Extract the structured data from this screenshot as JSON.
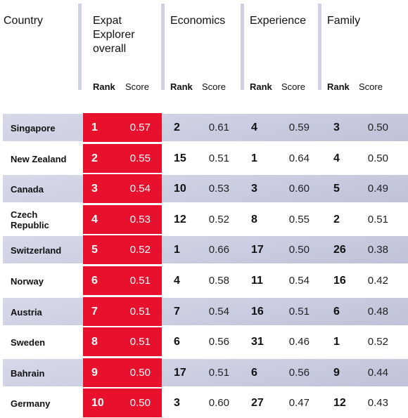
{
  "headers": {
    "country": "Country",
    "overall_lines": [
      "Expat",
      "Explorer",
      "overall"
    ],
    "economics": "Economics",
    "experience": "Experience",
    "family": "Family",
    "rank": "Rank",
    "score": "Score"
  },
  "rows": [
    {
      "country": [
        "Singapore"
      ],
      "overall_rank": "1",
      "overall_score": "0.57",
      "econ_rank": "2",
      "econ_score": "0.61",
      "exp_rank": "4",
      "exp_score": "0.59",
      "fam_rank": "3",
      "fam_score": "0.50"
    },
    {
      "country": [
        "New Zealand"
      ],
      "overall_rank": "2",
      "overall_score": "0.55",
      "econ_rank": "15",
      "econ_score": "0.51",
      "exp_rank": "1",
      "exp_score": "0.64",
      "fam_rank": "4",
      "fam_score": "0.50"
    },
    {
      "country": [
        "Canada"
      ],
      "overall_rank": "3",
      "overall_score": "0.54",
      "econ_rank": "10",
      "econ_score": "0.53",
      "exp_rank": "3",
      "exp_score": "0.60",
      "fam_rank": "5",
      "fam_score": "0.49"
    },
    {
      "country": [
        "Czech",
        "Republic"
      ],
      "overall_rank": "4",
      "overall_score": "0.53",
      "econ_rank": "12",
      "econ_score": "0.52",
      "exp_rank": "8",
      "exp_score": "0.55",
      "fam_rank": "2",
      "fam_score": "0.51"
    },
    {
      "country": [
        "Switzerland"
      ],
      "overall_rank": "5",
      "overall_score": "0.52",
      "econ_rank": "1",
      "econ_score": "0.66",
      "exp_rank": "17",
      "exp_score": "0.50",
      "fam_rank": "26",
      "fam_score": "0.38"
    },
    {
      "country": [
        "Norway"
      ],
      "overall_rank": "6",
      "overall_score": "0.51",
      "econ_rank": "4",
      "econ_score": "0.58",
      "exp_rank": "11",
      "exp_score": "0.54",
      "fam_rank": "16",
      "fam_score": "0.42"
    },
    {
      "country": [
        "Austria"
      ],
      "overall_rank": "7",
      "overall_score": "0.51",
      "econ_rank": "7",
      "econ_score": "0.54",
      "exp_rank": "16",
      "exp_score": "0.51",
      "fam_rank": "6",
      "fam_score": "0.48"
    },
    {
      "country": [
        "Sweden"
      ],
      "overall_rank": "8",
      "overall_score": "0.51",
      "econ_rank": "6",
      "econ_score": "0.56",
      "exp_rank": "31",
      "exp_score": "0.46",
      "fam_rank": "1",
      "fam_score": "0.52"
    },
    {
      "country": [
        "Bahrain"
      ],
      "overall_rank": "9",
      "overall_score": "0.50",
      "econ_rank": "17",
      "econ_score": "0.51",
      "exp_rank": "6",
      "exp_score": "0.56",
      "fam_rank": "9",
      "fam_score": "0.44"
    },
    {
      "country": [
        "Germany"
      ],
      "overall_rank": "10",
      "overall_score": "0.50",
      "econ_rank": "3",
      "econ_score": "0.60",
      "exp_rank": "27",
      "exp_score": "0.47",
      "fam_rank": "12",
      "fam_score": "0.43"
    }
  ],
  "colors": {
    "highlight": "#e8112d",
    "stripe": "#c9cce0",
    "divider": "#cfd2e4"
  }
}
